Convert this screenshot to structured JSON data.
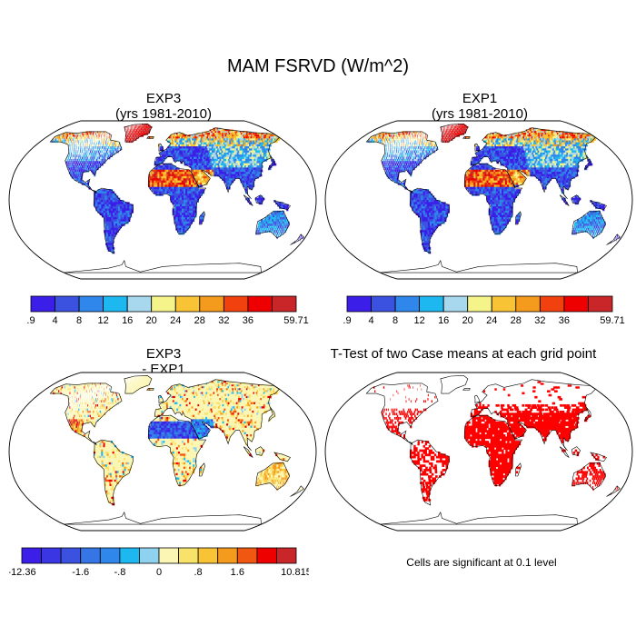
{
  "main_title": "MAM FSRVD (W/m^2)",
  "panels": [
    {
      "title": "EXP3",
      "subtitle": "(yrs 1981-2010)"
    },
    {
      "title": "EXP1",
      "subtitle": "(yrs 1981-2010)"
    },
    {
      "title": "EXP3",
      "subtitle": "- EXP1"
    },
    {
      "title": "T-Test of two Case means at each grid point",
      "subtitle": ""
    }
  ],
  "colorbar_abs": {
    "colors": [
      "#3b1fe8",
      "#3b52e0",
      "#2f86eb",
      "#1cb8ef",
      "#a7d8ee",
      "#f5f48b",
      "#f8c334",
      "#f49a1c",
      "#f0410f",
      "#ee0000",
      "#c9262a"
    ],
    "labels": [
      ".9",
      "4",
      "8",
      "12",
      "16",
      "20",
      "24",
      "28",
      "32",
      "36",
      "59.71"
    ]
  },
  "colorbar_diff": {
    "colors": [
      "#3b1fe8",
      "#3b36e4",
      "#3b52e0",
      "#3575e6",
      "#2f86eb",
      "#1cb8ef",
      "#8fd2f0",
      "#fbf6b3",
      "#f8e26a",
      "#f8c334",
      "#f49a1c",
      "#f05812",
      "#ee0000",
      "#c9262a"
    ],
    "labels": [
      "-12.36",
      "-1.6",
      "-.8",
      "0",
      ".8",
      "1.6",
      "10.815"
    ]
  },
  "ttest_note": "Cells are significant at 0.1 level",
  "ttest_color": "#ff0000",
  "ocean_color": "#ffffff"
}
